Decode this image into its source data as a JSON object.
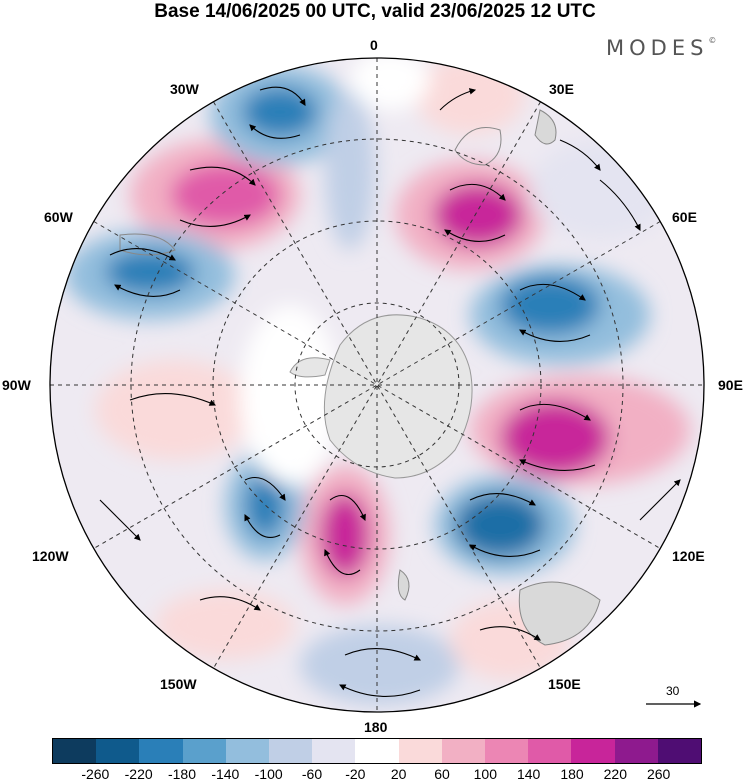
{
  "title": "Base 14/06/2025 00 UTC, valid 23/06/2025 12 UTC",
  "brand": "MODES",
  "brand_mark": "©",
  "longitude_labels": {
    "top": "0",
    "bottom": "180",
    "left": "90W",
    "right": "90E",
    "w30": "30W",
    "e30": "30E",
    "w60": "60W",
    "e60": "60E",
    "w120": "120W",
    "e120": "120E",
    "w150": "150W",
    "e150": "150E"
  },
  "wind_scale_label": "30",
  "colorbar": {
    "colors": [
      "#0d3b5e",
      "#0f5a8c",
      "#2a7fb8",
      "#5aa0cc",
      "#93bedd",
      "#c0cfe6",
      "#e4e4f1",
      "#ffffff",
      "#fadada",
      "#f2b0c4",
      "#ec86b4",
      "#e05aa8",
      "#c8259a",
      "#8e1a8e",
      "#4f0d73"
    ],
    "labels": [
      "-260",
      "-220",
      "-180",
      "-140",
      "-100",
      "-60",
      "-20",
      "20",
      "60",
      "100",
      "140",
      "180",
      "220",
      "260"
    ]
  },
  "icons": [
    "wind-arrow-icon",
    "scale-arrow-icon"
  ]
}
